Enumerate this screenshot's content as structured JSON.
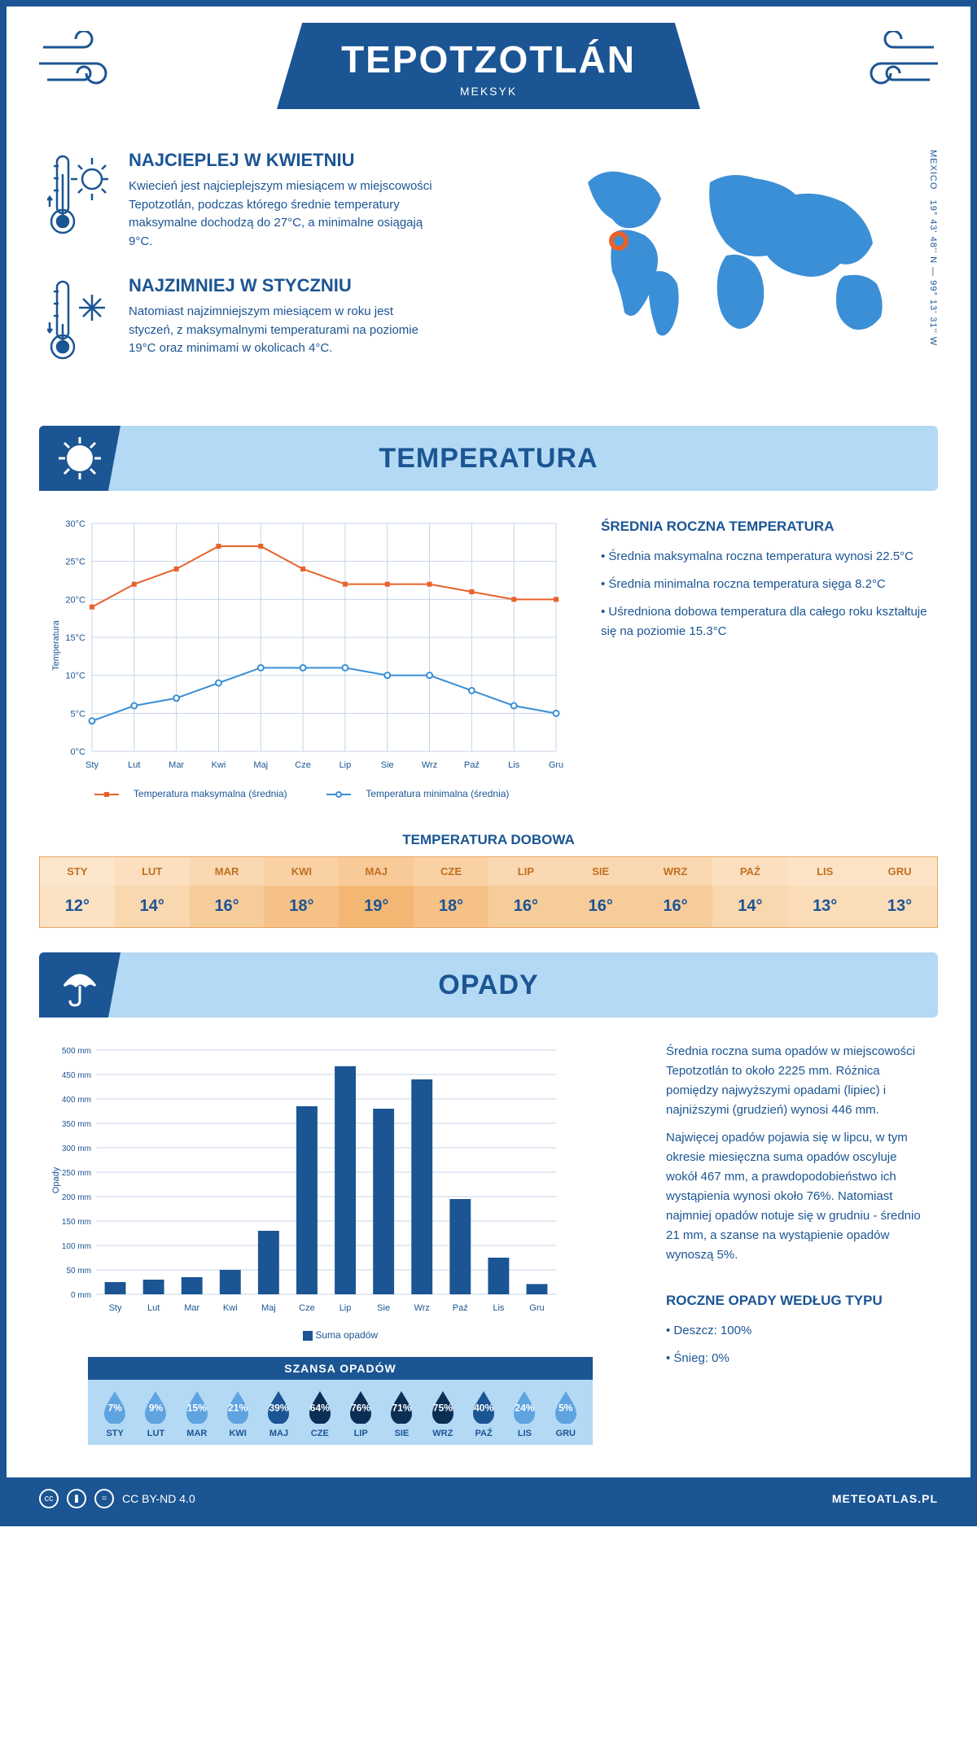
{
  "header": {
    "title": "TEPOTZOTLÁN",
    "subtitle": "MEKSYK"
  },
  "coords": "19° 43' 48'' N — 99° 13' 31'' W",
  "coords_country": "MEXICO",
  "warmest": {
    "title": "NAJCIEPLEJ W KWIETNIU",
    "text": "Kwiecień jest najcieplejszym miesiącem w miejscowości Tepotzotlán, podczas którego średnie temperatury maksymalne dochodzą do 27°C, a minimalne osiągają 9°C."
  },
  "coldest": {
    "title": "NAJZIMNIEJ W STYCZNIU",
    "text": "Natomiast najzimniejszym miesiącem w roku jest styczeń, z maksymalnymi temperaturami na poziomie 19°C oraz minimami w okolicach 4°C."
  },
  "section_temp": "TEMPERATURA",
  "section_precip": "OPADY",
  "months": [
    "Sty",
    "Lut",
    "Mar",
    "Kwi",
    "Maj",
    "Cze",
    "Lip",
    "Sie",
    "Wrz",
    "Paź",
    "Lis",
    "Gru"
  ],
  "months_upper": [
    "STY",
    "LUT",
    "MAR",
    "KWI",
    "MAJ",
    "CZE",
    "LIP",
    "SIE",
    "WRZ",
    "PAŹ",
    "LIS",
    "GRU"
  ],
  "temp_chart": {
    "y_label": "Temperatura",
    "y_ticks": [
      "0°C",
      "5°C",
      "10°C",
      "15°C",
      "20°C",
      "25°C",
      "30°C"
    ],
    "ylim": [
      0,
      30
    ],
    "max_series": {
      "values": [
        19,
        22,
        24,
        27,
        27,
        24,
        22,
        22,
        22,
        21,
        20,
        20
      ],
      "color": "#e8622c"
    },
    "min_series": {
      "values": [
        4,
        6,
        7,
        9,
        11,
        11,
        11,
        10,
        10,
        8,
        6,
        5
      ],
      "color": "#3b8fd6"
    },
    "legend_max": "Temperatura maksymalna (średnia)",
    "legend_min": "Temperatura minimalna (średnia)",
    "grid_color": "#c7d4ea",
    "background": "#ffffff"
  },
  "temp_text": {
    "title": "ŚREDNIA ROCZNA TEMPERATURA",
    "b1": "• Średnia maksymalna roczna temperatura wynosi 22.5°C",
    "b2": "• Średnia minimalna roczna temperatura sięga 8.2°C",
    "b3": "• Uśredniona dobowa temperatura dla całego roku kształtuje się na poziomie 15.3°C"
  },
  "daily": {
    "title": "TEMPERATURA DOBOWA",
    "values": [
      "12°",
      "14°",
      "16°",
      "18°",
      "19°",
      "18°",
      "16°",
      "16°",
      "16°",
      "14°",
      "13°",
      "13°"
    ],
    "header_colors": [
      "#fce6cc",
      "#fbdfbf",
      "#fad8b2",
      "#f9d1a5",
      "#f8ca98",
      "#f9d1a5",
      "#fad8b2",
      "#fad8b2",
      "#fad8b2",
      "#fbdfbf",
      "#fce3c6",
      "#fce3c6"
    ],
    "value_colors": [
      "#fbe2c3",
      "#f9d7af",
      "#f7cc9b",
      "#f5c187",
      "#f3b673",
      "#f5c187",
      "#f7cc9b",
      "#f7cc9b",
      "#f7cc9b",
      "#f9d7af",
      "#fadcb9",
      "#fadcb9"
    ]
  },
  "precip_chart": {
    "y_label": "Opady",
    "y_ticks": [
      "0 mm",
      "50 mm",
      "100 mm",
      "150 mm",
      "200 mm",
      "250 mm",
      "300 mm",
      "350 mm",
      "400 mm",
      "450 mm",
      "500 mm"
    ],
    "ylim": [
      0,
      500
    ],
    "values": [
      25,
      30,
      35,
      50,
      130,
      385,
      467,
      380,
      440,
      195,
      75,
      21
    ],
    "bar_color": "#1b5593",
    "legend": "Suma opadów",
    "grid_color": "#c7d4ea"
  },
  "precip_text": {
    "p1": "Średnia roczna suma opadów w miejscowości Tepotzotlán to około 2225 mm. Różnica pomiędzy najwyższymi opadami (lipiec) i najniższymi (grudzień) wynosi 446 mm.",
    "p2": "Najwięcej opadów pojawia się w lipcu, w tym okresie miesięczna suma opadów oscyluje wokół 467 mm, a prawdopodobieństwo ich wystąpienia wynosi około 76%. Natomiast najmniej opadów notuje się w grudniu - średnio 21 mm, a szanse na wystąpienie opadów wynoszą 5%."
  },
  "chance": {
    "title": "SZANSA OPADÓW",
    "values": [
      "7%",
      "9%",
      "15%",
      "21%",
      "39%",
      "64%",
      "76%",
      "71%",
      "75%",
      "40%",
      "24%",
      "5%"
    ],
    "drop_colors": [
      "#5fa3e0",
      "#5fa3e0",
      "#5fa3e0",
      "#5fa3e0",
      "#1b5593",
      "#0b2e55",
      "#0b2e55",
      "#0b2e55",
      "#0b2e55",
      "#1b5593",
      "#5fa3e0",
      "#5fa3e0"
    ]
  },
  "precip_type": {
    "title": "ROCZNE OPADY WEDŁUG TYPU",
    "b1": "• Deszcz: 100%",
    "b2": "• Śnieg: 0%"
  },
  "footer": {
    "license": "CC BY-ND 4.0",
    "site": "METEOATLAS.PL"
  },
  "colors": {
    "primary": "#1b5593",
    "lightblue": "#b3d9f5",
    "map": "#3b8fd6",
    "marker": "#e8622c"
  }
}
